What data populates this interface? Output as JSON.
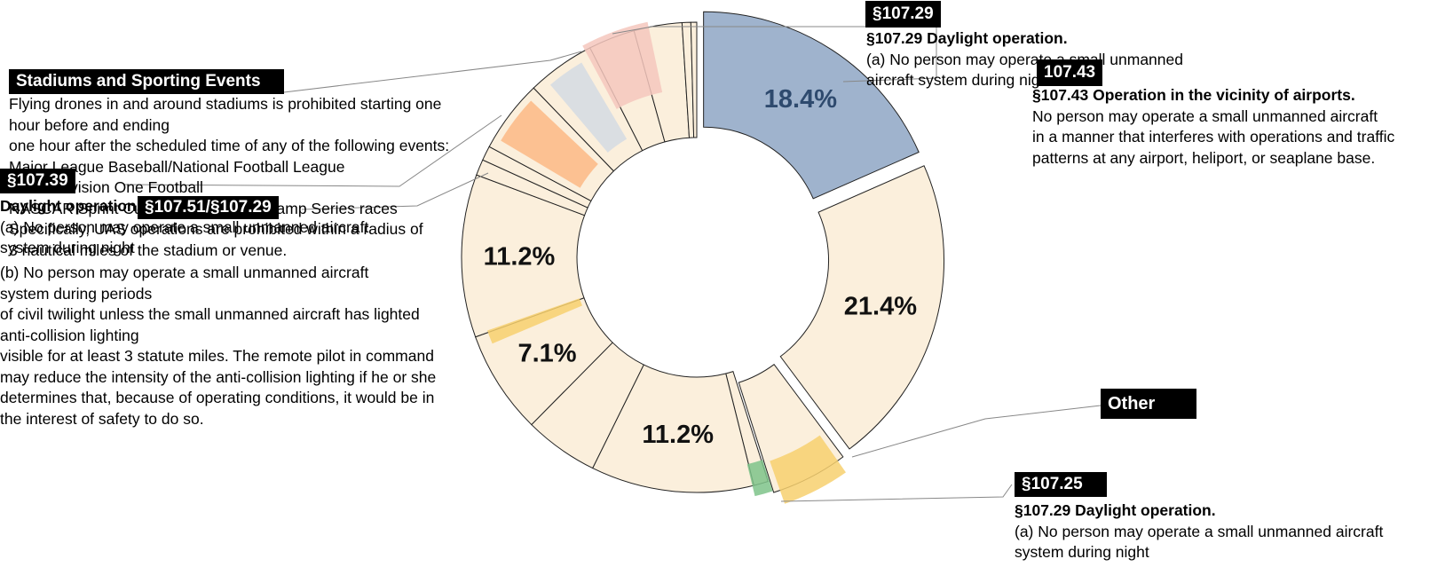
{
  "chart_data": {
    "type": "pie",
    "variant": "donut",
    "title": "",
    "legend": "none",
    "slices": [
      {
        "label": "§107.29 Daylight operation",
        "value": 18.4,
        "value_label": "18.4%",
        "fill": "#9fb3cd",
        "exploded": true
      },
      {
        "label": "",
        "value": 21.4,
        "value_label": "21.4%",
        "fill": "#fbefdc",
        "exploded": true
      },
      {
        "label": "Other",
        "value": 5.3,
        "value_label": "",
        "fill": "#fbefdc",
        "exploded": true
      },
      {
        "label": "",
        "value": 1.0,
        "value_label": "",
        "fill": "#fbefdc",
        "exploded": false
      },
      {
        "label": "",
        "value": 11.2,
        "value_label": "11.2%",
        "fill": "#fbefdc",
        "exploded": false
      },
      {
        "label": "",
        "value": 5.1,
        "value_label": "",
        "fill": "#fbefdc",
        "exploded": false
      },
      {
        "label": "",
        "value": 7.1,
        "value_label": "7.1%",
        "fill": "#fbefdc",
        "exploded": false
      },
      {
        "label": "",
        "value": 11.2,
        "value_label": "11.2%",
        "fill": "#fbefdc",
        "exploded": false
      },
      {
        "label": "",
        "value": 1.1,
        "value_label": "",
        "fill": "#fbefdc",
        "exploded": false
      },
      {
        "label": "",
        "value": 1.0,
        "value_label": "",
        "fill": "#fbefdc",
        "exploded": false
      },
      {
        "label": "",
        "value": 5.0,
        "value_label": "",
        "fill": "#fbefdc",
        "exploded": false
      },
      {
        "label": "",
        "value": 4.7,
        "value_label": "",
        "fill": "#fbefdc",
        "exploded": false
      },
      {
        "label": "",
        "value": 3.2,
        "value_label": "",
        "fill": "#fbefdc",
        "exploded": false
      },
      {
        "label": "",
        "value": 3.3,
        "value_label": "",
        "fill": "#fbefdc",
        "exploded": false
      },
      {
        "label": "",
        "value": 0.6,
        "value_label": "",
        "fill": "#fbefdc",
        "exploded": false
      },
      {
        "label": "",
        "value": 0.4,
        "value_label": "",
        "fill": "#fbefdc",
        "exploded": false
      }
    ],
    "highlights": [
      {
        "color": "#f7d06f",
        "value": 4.4
      },
      {
        "color": "#7ec38a",
        "value": 1.2
      },
      {
        "color": "#f7d06f",
        "value": 1.0
      },
      {
        "color": "#fbb885",
        "value": 3.5
      },
      {
        "color": "#d3dae3",
        "value": 2.7
      },
      {
        "color": "#f4c7bd",
        "value": 4.6
      }
    ],
    "annotations": {
      "tag_10729": "§107.29",
      "callout_10729": {
        "heading": "§107.29   Daylight operation.",
        "lines": [
          "(a) No person may operate a small unmanned",
          "aircraft system during night"
        ]
      },
      "tag_10743": "107.43",
      "callout_10743": {
        "heading": "§107.43   Operation in the vicinity of airports.",
        "lines": [
          "No person may operate a small unmanned aircraft",
          "in a manner that interferes with operations and traffic",
          "patterns at any airport, heliport, or seaplane base."
        ]
      },
      "tag_stadiums": "Stadiums and Sporting Events",
      "callout_stadiums": {
        "lines": [
          "Flying drones in and around stadiums is prohibited starting one",
          "hour before and ending",
          "one hour after the scheduled time of any of the following events:",
          "Major League Baseball/National Football League",
          "NCAA Division One Football",
          "NASCAR Sprint Cup, Indy Car, and Champ Series races",
          "Specifically, UAS operations are prohibited within a radius of",
          "3 nautical miles of the stadium or venue."
        ]
      },
      "tag_10739": "§107.39",
      "callout_10739": {
        "lines": [
          "Daylight operation.",
          "(a) No person may operate a small unmanned aircraft",
          "system during night"
        ]
      },
      "tag_10751": "§107.51/§107.29",
      "callout_10751": {
        "lines": [
          "(b) No person may operate a small unmanned aircraft",
          "system during periods",
          "of civil twilight unless the small unmanned aircraft has lighted",
          "anti-collision lighting",
          "visible for at least 3 statute miles. The remote pilot in command",
          "may reduce the intensity of the anti-collision lighting if he or she",
          "determines that, because of operating conditions, it would be in",
          "the interest of safety to do so."
        ]
      },
      "tag_other": "Other",
      "tag_10725": "§107.25",
      "callout_10725": {
        "heading": "§107.29 Daylight operation.",
        "lines": [
          "(a) No person may operate a small unmanned aircraft",
          "system during night"
        ]
      }
    }
  }
}
